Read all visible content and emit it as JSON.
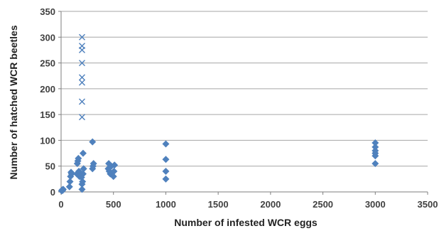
{
  "chart_data": {
    "type": "scatter",
    "title": "",
    "xlabel": "Number of infested WCR eggs",
    "ylabel": "Number of hatched WCR beetles",
    "xlim": [
      0,
      3500
    ],
    "ylim": [
      0,
      350
    ],
    "xticks": [
      0,
      500,
      1000,
      1500,
      2000,
      2500,
      3000,
      3500
    ],
    "yticks": [
      0,
      50,
      100,
      150,
      200,
      250,
      300,
      350
    ],
    "grid": "horizontal",
    "colors": {
      "marker": "#4f81bd",
      "grid": "#a6a6a6",
      "axis": "#7f7f7f"
    },
    "series": [
      {
        "marker": "diamond",
        "points": [
          [
            5,
            2
          ],
          [
            10,
            4
          ],
          [
            15,
            3
          ],
          [
            20,
            5
          ],
          [
            80,
            10
          ],
          [
            85,
            20
          ],
          [
            90,
            30
          ],
          [
            95,
            38
          ],
          [
            100,
            35
          ],
          [
            150,
            35
          ],
          [
            155,
            55
          ],
          [
            160,
            60
          ],
          [
            165,
            65
          ],
          [
            170,
            40
          ],
          [
            175,
            30
          ],
          [
            195,
            28
          ],
          [
            200,
            15
          ],
          [
            200,
            5
          ],
          [
            205,
            20
          ],
          [
            210,
            35
          ],
          [
            215,
            45
          ],
          [
            210,
            75
          ],
          [
            300,
            45
          ],
          [
            305,
            50
          ],
          [
            310,
            55
          ],
          [
            300,
            97
          ],
          [
            450,
            45
          ],
          [
            455,
            55
          ],
          [
            460,
            40
          ],
          [
            470,
            35
          ],
          [
            480,
            50
          ],
          [
            500,
            30
          ],
          [
            505,
            40
          ],
          [
            510,
            52
          ],
          [
            1000,
            25
          ],
          [
            1000,
            40
          ],
          [
            1000,
            63
          ],
          [
            1000,
            93
          ],
          [
            3000,
            55
          ],
          [
            3000,
            70
          ],
          [
            3000,
            75
          ],
          [
            3000,
            80
          ],
          [
            3000,
            87
          ],
          [
            3000,
            95
          ]
        ]
      },
      {
        "marker": "x",
        "points": [
          [
            200,
            145
          ],
          [
            200,
            175
          ],
          [
            200,
            212
          ],
          [
            200,
            222
          ],
          [
            200,
            250
          ],
          [
            200,
            275
          ],
          [
            200,
            283
          ],
          [
            200,
            300
          ]
        ]
      }
    ]
  }
}
